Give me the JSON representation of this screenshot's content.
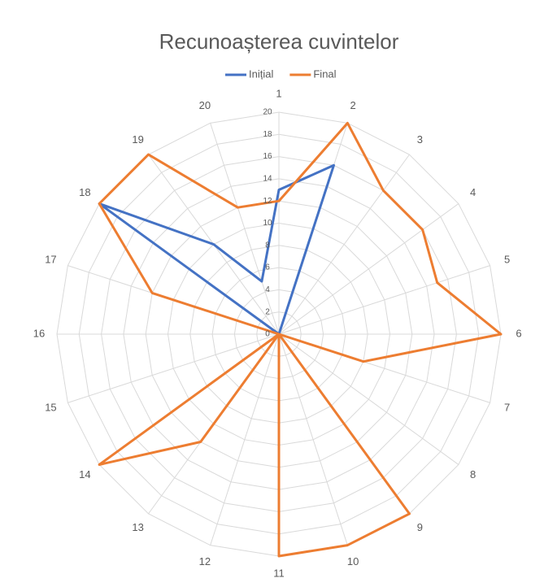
{
  "chart_data": {
    "type": "radar",
    "title": "Recunoașterea cuvintelor",
    "categories": [
      "1",
      "2",
      "3",
      "4",
      "5",
      "6",
      "7",
      "8",
      "9",
      "10",
      "11",
      "12",
      "13",
      "14",
      "15",
      "16",
      "17",
      "18",
      "19",
      "20"
    ],
    "series": [
      {
        "name": "Inițial",
        "color": "#4472c4",
        "values": [
          13,
          16,
          0,
          0,
          0,
          0,
          0,
          0,
          0,
          0,
          0,
          0,
          0,
          0,
          0,
          0,
          0,
          20,
          10,
          5
        ]
      },
      {
        "name": "Final",
        "color": "#ed7d31",
        "values": [
          12,
          20,
          16,
          16,
          15,
          20,
          8,
          0,
          20,
          20,
          20,
          0,
          12,
          20,
          0,
          0,
          12,
          20,
          20,
          12
        ]
      }
    ],
    "ylim": [
      0,
      20
    ],
    "yticks": [
      0,
      2,
      4,
      6,
      8,
      10,
      12,
      14,
      16,
      18,
      20
    ],
    "grid": true,
    "legend": "top"
  }
}
